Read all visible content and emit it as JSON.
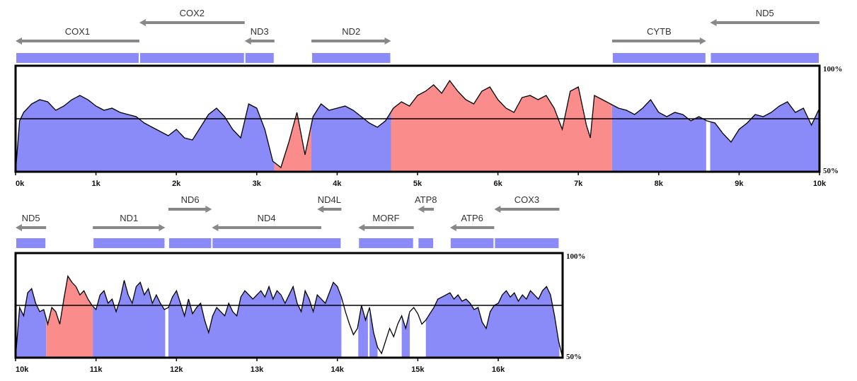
{
  "chart_data": [
    {
      "type": "area",
      "title": "",
      "xlabel": "",
      "ylabel": "",
      "xlim": [
        0,
        10000
      ],
      "ylim": [
        50,
        100
      ],
      "y_ticks": [
        "100%",
        "50%"
      ],
      "x_ticks": [
        "0k",
        "1k",
        "2k",
        "3k",
        "4k",
        "5k",
        "6k",
        "7k",
        "8k",
        "9k",
        "10k"
      ],
      "reference_line": 75,
      "colors": {
        "coding": "#8a8af8",
        "noncoding": "#fb8c8c",
        "arrow": "#888888",
        "border": "#000000"
      },
      "genes": [
        {
          "name": "COX1",
          "start": 0,
          "end": 1540,
          "dir": "left"
        },
        {
          "name": "COX2",
          "start": 1540,
          "end": 2850,
          "dir": "left"
        },
        {
          "name": "ND3",
          "start": 2850,
          "end": 3220,
          "dir": "left"
        },
        {
          "name": "ND2",
          "start": 3680,
          "end": 4670,
          "dir": "right"
        },
        {
          "name": "CYTB",
          "start": 7420,
          "end": 8590,
          "dir": "right"
        },
        {
          "name": "ND5",
          "start": 8640,
          "end": 10000,
          "dir": "left"
        }
      ],
      "regions": [
        {
          "start": 0,
          "end": 3220,
          "type": "coding"
        },
        {
          "start": 3220,
          "end": 3680,
          "type": "noncoding"
        },
        {
          "start": 3680,
          "end": 4670,
          "type": "coding"
        },
        {
          "start": 4670,
          "end": 7420,
          "type": "noncoding"
        },
        {
          "start": 7420,
          "end": 8590,
          "type": "coding"
        },
        {
          "start": 8640,
          "end": 10000,
          "type": "coding"
        }
      ],
      "profile": [
        [
          0,
          50
        ],
        [
          50,
          74
        ],
        [
          100,
          78
        ],
        [
          200,
          82
        ],
        [
          300,
          84
        ],
        [
          400,
          83
        ],
        [
          500,
          79
        ],
        [
          600,
          81
        ],
        [
          700,
          84
        ],
        [
          800,
          86
        ],
        [
          900,
          84
        ],
        [
          1000,
          81
        ],
        [
          1100,
          79
        ],
        [
          1200,
          80
        ],
        [
          1300,
          78
        ],
        [
          1400,
          77
        ],
        [
          1500,
          76
        ],
        [
          1600,
          73
        ],
        [
          1700,
          71
        ],
        [
          1800,
          69
        ],
        [
          1900,
          67
        ],
        [
          2000,
          70
        ],
        [
          2100,
          66
        ],
        [
          2200,
          65
        ],
        [
          2300,
          71
        ],
        [
          2400,
          77
        ],
        [
          2500,
          80
        ],
        [
          2600,
          76
        ],
        [
          2700,
          70
        ],
        [
          2800,
          66
        ],
        [
          2900,
          82
        ],
        [
          3000,
          80
        ],
        [
          3100,
          70
        ],
        [
          3200,
          55
        ],
        [
          3300,
          52
        ],
        [
          3400,
          64
        ],
        [
          3500,
          78
        ],
        [
          3550,
          68
        ],
        [
          3600,
          58
        ],
        [
          3700,
          76
        ],
        [
          3800,
          82
        ],
        [
          3900,
          79
        ],
        [
          4000,
          80
        ],
        [
          4100,
          81
        ],
        [
          4200,
          79
        ],
        [
          4300,
          76
        ],
        [
          4400,
          73
        ],
        [
          4500,
          71
        ],
        [
          4600,
          74
        ],
        [
          4700,
          80
        ],
        [
          4800,
          83
        ],
        [
          4900,
          81
        ],
        [
          5000,
          86
        ],
        [
          5100,
          88
        ],
        [
          5200,
          91
        ],
        [
          5300,
          87
        ],
        [
          5400,
          93
        ],
        [
          5500,
          88
        ],
        [
          5600,
          84
        ],
        [
          5700,
          82
        ],
        [
          5800,
          88
        ],
        [
          5900,
          90
        ],
        [
          6000,
          84
        ],
        [
          6100,
          80
        ],
        [
          6200,
          78
        ],
        [
          6300,
          85
        ],
        [
          6400,
          86
        ],
        [
          6500,
          84
        ],
        [
          6600,
          86
        ],
        [
          6700,
          80
        ],
        [
          6800,
          70
        ],
        [
          6900,
          88
        ],
        [
          7000,
          90
        ],
        [
          7100,
          72
        ],
        [
          7150,
          66
        ],
        [
          7200,
          86
        ],
        [
          7300,
          84
        ],
        [
          7400,
          82
        ],
        [
          7500,
          80
        ],
        [
          7600,
          79
        ],
        [
          7700,
          77
        ],
        [
          7800,
          80
        ],
        [
          7900,
          84
        ],
        [
          8000,
          78
        ],
        [
          8100,
          76
        ],
        [
          8200,
          78
        ],
        [
          8300,
          77
        ],
        [
          8400,
          74
        ],
        [
          8500,
          76
        ],
        [
          8600,
          74
        ],
        [
          8700,
          73
        ],
        [
          8800,
          68
        ],
        [
          8900,
          64
        ],
        [
          9000,
          70
        ],
        [
          9100,
          73
        ],
        [
          9200,
          77
        ],
        [
          9300,
          76
        ],
        [
          9400,
          78
        ],
        [
          9500,
          81
        ],
        [
          9600,
          83
        ],
        [
          9700,
          78
        ],
        [
          9800,
          80
        ],
        [
          9900,
          72
        ],
        [
          10000,
          80
        ]
      ]
    },
    {
      "type": "area",
      "title": "",
      "xlabel": "",
      "ylabel": "",
      "xlim": [
        10000,
        16800
      ],
      "ylim": [
        50,
        100
      ],
      "y_ticks": [
        "100%",
        "50%"
      ],
      "x_ticks": [
        "10k",
        "11k",
        "12k",
        "13k",
        "14k",
        "15k",
        "16k"
      ],
      "reference_line": 75,
      "colors": {
        "coding": "#8a8af8",
        "noncoding": "#fb8c8c",
        "arrow": "#888888",
        "border": "#000000"
      },
      "genes": [
        {
          "name": "ND5",
          "start": 10000,
          "end": 10380,
          "dir": "left"
        },
        {
          "name": "ND1",
          "start": 10960,
          "end": 11860,
          "dir": "right"
        },
        {
          "name": "ND6",
          "start": 11900,
          "end": 12440,
          "dir": "right"
        },
        {
          "name": "ND4",
          "start": 12440,
          "end": 13800,
          "dir": "left"
        },
        {
          "name": "ND4L",
          "start": 13750,
          "end": 14050,
          "dir": "left"
        },
        {
          "name": "MORF",
          "start": 14260,
          "end": 14950,
          "dir": "left"
        },
        {
          "name": "ATP8",
          "start": 15000,
          "end": 15200,
          "dir": "left"
        },
        {
          "name": "ATP6",
          "start": 15400,
          "end": 15950,
          "dir": "left"
        },
        {
          "name": "COX3",
          "start": 15950,
          "end": 16760,
          "dir": "left"
        }
      ],
      "regions": [
        {
          "start": 10000,
          "end": 10380,
          "type": "coding"
        },
        {
          "start": 10380,
          "end": 10960,
          "type": "noncoding"
        },
        {
          "start": 10960,
          "end": 11860,
          "type": "coding"
        },
        {
          "start": 11900,
          "end": 14050,
          "type": "coding"
        },
        {
          "start": 14260,
          "end": 14380,
          "type": "coding"
        },
        {
          "start": 14400,
          "end": 14500,
          "type": "coding"
        },
        {
          "start": 14800,
          "end": 14900,
          "type": "coding"
        },
        {
          "start": 15100,
          "end": 16760,
          "type": "coding"
        }
      ],
      "profile": [
        [
          10000,
          50
        ],
        [
          10050,
          74
        ],
        [
          10100,
          70
        ],
        [
          10150,
          81
        ],
        [
          10200,
          83
        ],
        [
          10250,
          76
        ],
        [
          10300,
          72
        ],
        [
          10350,
          73
        ],
        [
          10400,
          66
        ],
        [
          10450,
          74
        ],
        [
          10500,
          72
        ],
        [
          10550,
          66
        ],
        [
          10600,
          78
        ],
        [
          10650,
          89
        ],
        [
          10700,
          86
        ],
        [
          10750,
          84
        ],
        [
          10800,
          80
        ],
        [
          10850,
          82
        ],
        [
          10900,
          78
        ],
        [
          10950,
          75
        ],
        [
          11000,
          73
        ],
        [
          11050,
          80
        ],
        [
          11100,
          82
        ],
        [
          11150,
          76
        ],
        [
          11200,
          78
        ],
        [
          11250,
          72
        ],
        [
          11300,
          78
        ],
        [
          11350,
          87
        ],
        [
          11400,
          80
        ],
        [
          11450,
          76
        ],
        [
          11500,
          84
        ],
        [
          11550,
          86
        ],
        [
          11600,
          80
        ],
        [
          11650,
          83
        ],
        [
          11700,
          76
        ],
        [
          11750,
          80
        ],
        [
          11800,
          76
        ],
        [
          11850,
          73
        ],
        [
          11900,
          74
        ],
        [
          11950,
          79
        ],
        [
          12000,
          82
        ],
        [
          12050,
          76
        ],
        [
          12100,
          70
        ],
        [
          12150,
          78
        ],
        [
          12200,
          71
        ],
        [
          12250,
          74
        ],
        [
          12300,
          76
        ],
        [
          12350,
          68
        ],
        [
          12400,
          62
        ],
        [
          12450,
          70
        ],
        [
          12500,
          74
        ],
        [
          12550,
          72
        ],
        [
          12600,
          70
        ],
        [
          12650,
          76
        ],
        [
          12700,
          72
        ],
        [
          12750,
          70
        ],
        [
          12800,
          79
        ],
        [
          12850,
          82
        ],
        [
          12900,
          80
        ],
        [
          12950,
          78
        ],
        [
          13000,
          80
        ],
        [
          13050,
          82
        ],
        [
          13100,
          79
        ],
        [
          13150,
          84
        ],
        [
          13200,
          78
        ],
        [
          13250,
          82
        ],
        [
          13300,
          80
        ],
        [
          13350,
          76
        ],
        [
          13400,
          80
        ],
        [
          13450,
          84
        ],
        [
          13500,
          76
        ],
        [
          13550,
          72
        ],
        [
          13600,
          82
        ],
        [
          13650,
          78
        ],
        [
          13700,
          72
        ],
        [
          13750,
          80
        ],
        [
          13800,
          78
        ],
        [
          13850,
          76
        ],
        [
          13900,
          81
        ],
        [
          13950,
          86
        ],
        [
          14000,
          84
        ],
        [
          14050,
          79
        ],
        [
          14100,
          72
        ],
        [
          14150,
          66
        ],
        [
          14200,
          61
        ],
        [
          14250,
          64
        ],
        [
          14300,
          75
        ],
        [
          14350,
          68
        ],
        [
          14400,
          74
        ],
        [
          14450,
          62
        ],
        [
          14500,
          55
        ],
        [
          14550,
          52
        ],
        [
          14600,
          58
        ],
        [
          14650,
          64
        ],
        [
          14700,
          60
        ],
        [
          14750,
          66
        ],
        [
          14800,
          70
        ],
        [
          14850,
          64
        ],
        [
          14900,
          72
        ],
        [
          14950,
          74
        ],
        [
          15000,
          71
        ],
        [
          15050,
          66
        ],
        [
          15100,
          68
        ],
        [
          15150,
          71
        ],
        [
          15200,
          74
        ],
        [
          15250,
          78
        ],
        [
          15300,
          79
        ],
        [
          15350,
          80
        ],
        [
          15400,
          81
        ],
        [
          15450,
          78
        ],
        [
          15500,
          80
        ],
        [
          15550,
          77
        ],
        [
          15600,
          78
        ],
        [
          15650,
          76
        ],
        [
          15700,
          73
        ],
        [
          15750,
          74
        ],
        [
          15800,
          67
        ],
        [
          15850,
          64
        ],
        [
          15900,
          72
        ],
        [
          15950,
          75
        ],
        [
          16000,
          76
        ],
        [
          16050,
          80
        ],
        [
          16100,
          82
        ],
        [
          16150,
          79
        ],
        [
          16200,
          81
        ],
        [
          16250,
          77
        ],
        [
          16300,
          80
        ],
        [
          16350,
          78
        ],
        [
          16400,
          82
        ],
        [
          16450,
          80
        ],
        [
          16500,
          78
        ],
        [
          16550,
          82
        ],
        [
          16600,
          84
        ],
        [
          16650,
          80
        ],
        [
          16700,
          70
        ],
        [
          16750,
          58
        ],
        [
          16800,
          50
        ]
      ]
    }
  ]
}
